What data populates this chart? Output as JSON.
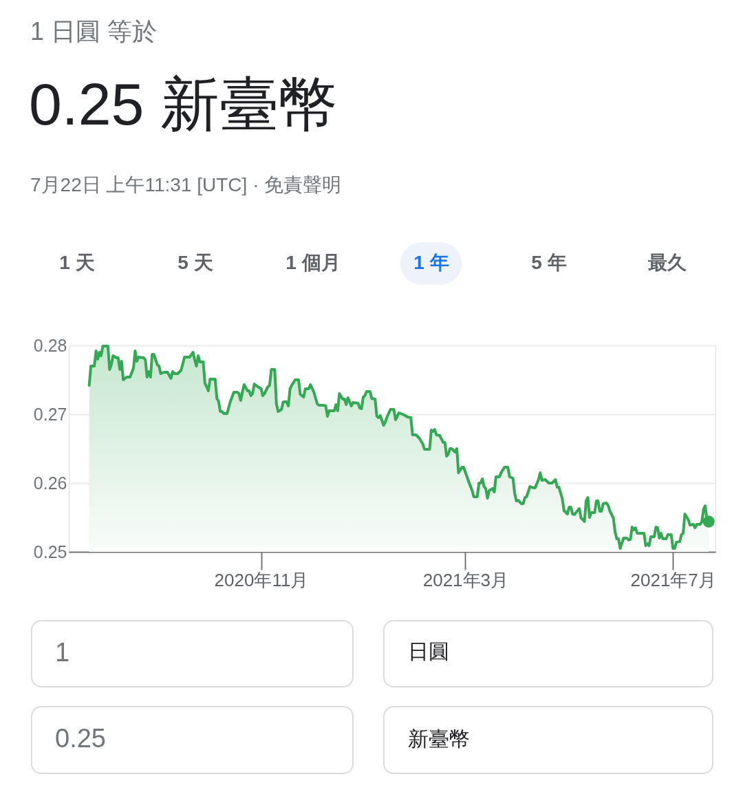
{
  "chart_data": {
    "type": "area",
    "title": "1 日圓 等於",
    "subtitle": "0.25 新臺幣",
    "annotations": [
      "7月22日 上午11:31 [UTC] · 免責聲明",
      "1 天",
      "5 天",
      "1 個月",
      "1 年",
      "5 年",
      "最久",
      "1",
      "日圓",
      "0.25",
      "新臺幣"
    ],
    "x": [
      "2020-07-23",
      "2020-07-24",
      "2020-07-26",
      "2020-07-27",
      "2020-07-28",
      "2020-07-29",
      "2020-07-30",
      "2020-07-31",
      "2020-08-03",
      "2020-08-04",
      "2020-08-05",
      "2020-08-06",
      "2020-08-08",
      "2020-08-09",
      "2020-08-10",
      "2020-08-11",
      "2020-08-12",
      "2020-08-14",
      "2020-08-16",
      "2020-08-18",
      "2020-08-19",
      "2020-08-20",
      "2020-08-21",
      "2020-08-24",
      "2020-08-25",
      "2020-08-26",
      "2020-08-27",
      "2020-08-28",
      "2020-08-29",
      "2020-08-30",
      "2020-09-01",
      "2020-09-02",
      "2020-09-03",
      "2020-09-05",
      "2020-09-07",
      "2020-09-09",
      "2020-09-10",
      "2020-09-11",
      "2020-09-13",
      "2020-09-15",
      "2020-09-17",
      "2020-09-20",
      "2020-09-22",
      "2020-09-23",
      "2020-09-24",
      "2020-09-25",
      "2020-09-26",
      "2020-09-28",
      "2020-09-29",
      "2020-09-30",
      "2020-10-01",
      "2020-10-02",
      "2020-10-05",
      "2020-10-06",
      "2020-10-07",
      "2020-10-08",
      "2020-10-09",
      "2020-10-10",
      "2020-10-12",
      "2020-10-14",
      "2020-10-16",
      "2020-10-18",
      "2020-10-19",
      "2020-10-20",
      "2020-10-21",
      "2020-10-22",
      "2020-10-24",
      "2020-10-25",
      "2020-10-26",
      "2020-10-27",
      "2020-10-28",
      "2020-10-30",
      "2020-11-01",
      "2020-11-02",
      "2020-11-03",
      "2020-11-05",
      "2020-11-06",
      "2020-11-07",
      "2020-11-09",
      "2020-11-10",
      "2020-11-11",
      "2020-11-13",
      "2020-11-14",
      "2020-11-16",
      "2020-11-17",
      "2020-11-18",
      "2020-11-19",
      "2020-11-21",
      "2020-11-23",
      "2020-11-24",
      "2020-11-26",
      "2020-11-27",
      "2020-11-29",
      "2020-11-30",
      "2020-12-02",
      "2020-12-04",
      "2020-12-05",
      "2020-12-08",
      "2020-12-09",
      "2020-12-10",
      "2020-12-11",
      "2020-12-14",
      "2020-12-15",
      "2020-12-16",
      "2020-12-17",
      "2020-12-19",
      "2020-12-20",
      "2020-12-21",
      "2020-12-22",
      "2020-12-24",
      "2020-12-25",
      "2020-12-28",
      "2020-12-29",
      "2020-12-30",
      "2020-12-31",
      "2021-01-01",
      "2021-01-02",
      "2021-01-04",
      "2021-01-05",
      "2021-01-07",
      "2021-01-08",
      "2021-01-09",
      "2021-01-10",
      "2021-01-12",
      "2021-01-13",
      "2021-01-14",
      "2021-01-16",
      "2021-01-18",
      "2021-01-19",
      "2021-01-21",
      "2021-01-23",
      "2021-01-24",
      "2021-01-26",
      "2021-01-28",
      "2021-01-29",
      "2021-01-31",
      "2021-02-02",
      "2021-02-04",
      "2021-02-05",
      "2021-02-08",
      "2021-02-09",
      "2021-02-10",
      "2021-02-11",
      "2021-02-12",
      "2021-02-14",
      "2021-02-16",
      "2021-02-17",
      "2021-02-18",
      "2021-02-19",
      "2021-02-20",
      "2021-02-21",
      "2021-02-23",
      "2021-02-24",
      "2021-02-25",
      "2021-02-27",
      "2021-02-28",
      "2021-03-03",
      "2021-03-05",
      "2021-03-06",
      "2021-03-08",
      "2021-03-09",
      "2021-03-10",
      "2021-03-11",
      "2021-03-12",
      "2021-03-13",
      "2021-03-14",
      "2021-03-15",
      "2021-03-17",
      "2021-03-18",
      "2021-03-19",
      "2021-03-21",
      "2021-03-22",
      "2021-03-24",
      "2021-03-26",
      "2021-03-27",
      "2021-03-29",
      "2021-03-30",
      "2021-03-31",
      "2021-04-01",
      "2021-04-03",
      "2021-04-04",
      "2021-04-05",
      "2021-04-06",
      "2021-04-08",
      "2021-04-10",
      "2021-04-11",
      "2021-04-13",
      "2021-04-14",
      "2021-04-15",
      "2021-04-17",
      "2021-04-19",
      "2021-04-21",
      "2021-04-23",
      "2021-04-24",
      "2021-04-25",
      "2021-04-27",
      "2021-04-28",
      "2021-04-30",
      "2021-05-01",
      "2021-05-02",
      "2021-05-03",
      "2021-05-04",
      "2021-05-06",
      "2021-05-07",
      "2021-05-08",
      "2021-05-09",
      "2021-05-10",
      "2021-05-11",
      "2021-05-12",
      "2021-05-13",
      "2021-05-14",
      "2021-05-16",
      "2021-05-17",
      "2021-05-18",
      "2021-05-19",
      "2021-05-20",
      "2021-05-21",
      "2021-05-23",
      "2021-05-24",
      "2021-05-25",
      "2021-05-27",
      "2021-05-28",
      "2021-05-29",
      "2021-05-30",
      "2021-05-31",
      "2021-06-02",
      "2021-06-04",
      "2021-06-05",
      "2021-06-06",
      "2021-06-07",
      "2021-06-08",
      "2021-06-09",
      "2021-06-10",
      "2021-06-12",
      "2021-06-14",
      "2021-06-15",
      "2021-06-16",
      "2021-06-17",
      "2021-06-18",
      "2021-06-20",
      "2021-06-21",
      "2021-06-22",
      "2021-06-23",
      "2021-06-24",
      "2021-06-25",
      "2021-06-27",
      "2021-06-28",
      "2021-06-30",
      "2021-07-01",
      "2021-07-02",
      "2021-07-03",
      "2021-07-05",
      "2021-07-06",
      "2021-07-07",
      "2021-07-08",
      "2021-07-10",
      "2021-07-11",
      "2021-07-13",
      "2021-07-14",
      "2021-07-15",
      "2021-07-17",
      "2021-07-18",
      "2021-07-19",
      "2021-07-20",
      "2021-07-21",
      "2021-07-22"
    ],
    "series": [
      {
        "color": "#34a853",
        "values": [
          0.2742,
          0.277,
          0.277,
          0.2792,
          0.278,
          0.279,
          0.2785,
          0.2799,
          0.2799,
          0.2765,
          0.2772,
          0.2785,
          0.2782,
          0.2782,
          0.2765,
          0.2777,
          0.275,
          0.2754,
          0.2754,
          0.2767,
          0.2792,
          0.2777,
          0.2783,
          0.2782,
          0.2779,
          0.2754,
          0.2762,
          0.2754,
          0.2787,
          0.2787,
          0.2772,
          0.277,
          0.2759,
          0.2761,
          0.2761,
          0.2752,
          0.2762,
          0.2759,
          0.2759,
          0.2764,
          0.2783,
          0.2783,
          0.279,
          0.2779,
          0.277,
          0.2785,
          0.2776,
          0.2776,
          0.2745,
          0.274,
          0.2734,
          0.2751,
          0.2751,
          0.2723,
          0.2719,
          0.2704,
          0.2704,
          0.2701,
          0.2701,
          0.2719,
          0.2732,
          0.2732,
          0.273,
          0.272,
          0.2732,
          0.2743,
          0.2734,
          0.2734,
          0.2727,
          0.273,
          0.2744,
          0.274,
          0.2737,
          0.2727,
          0.273,
          0.274,
          0.2742,
          0.2765,
          0.2765,
          0.2715,
          0.2704,
          0.2707,
          0.2718,
          0.2718,
          0.2712,
          0.2737,
          0.2742,
          0.275,
          0.275,
          0.2729,
          0.2725,
          0.2737,
          0.2737,
          0.2743,
          0.2732,
          0.2715,
          0.2713,
          0.2713,
          0.2712,
          0.2697,
          0.2705,
          0.2705,
          0.2714,
          0.2705,
          0.273,
          0.2722,
          0.2722,
          0.2714,
          0.2724,
          0.2712,
          0.2717,
          0.2716,
          0.2709,
          0.2708,
          0.2725,
          0.2727,
          0.2733,
          0.2733,
          0.2723,
          0.2722,
          0.2697,
          0.2695,
          0.2698,
          0.2684,
          0.2689,
          0.2696,
          0.2707,
          0.2707,
          0.2692,
          0.2702,
          0.27,
          0.2699,
          0.2696,
          0.2695,
          0.267,
          0.267,
          0.2665,
          0.2657,
          0.2649,
          0.2649,
          0.2677,
          0.2675,
          0.2678,
          0.267,
          0.2669,
          0.2659,
          0.2659,
          0.2639,
          0.2642,
          0.265,
          0.265,
          0.2645,
          0.265,
          0.2615,
          0.2623,
          0.2623,
          0.2602,
          0.2589,
          0.258,
          0.258,
          0.26,
          0.26,
          0.2606,
          0.2595,
          0.2592,
          0.2578,
          0.2589,
          0.2592,
          0.2587,
          0.2609,
          0.2609,
          0.2615,
          0.2623,
          0.2623,
          0.2609,
          0.2607,
          0.2585,
          0.2574,
          0.2575,
          0.257,
          0.257,
          0.2579,
          0.258,
          0.2595,
          0.2593,
          0.2593,
          0.2605,
          0.2615,
          0.2604,
          0.2605,
          0.26,
          0.26,
          0.2605,
          0.2594,
          0.2594,
          0.2577,
          0.256,
          0.2555,
          0.2565,
          0.2565,
          0.2555,
          0.2554,
          0.256,
          0.2563,
          0.2549,
          0.2547,
          0.2544,
          0.2574,
          0.2579,
          0.255,
          0.2557,
          0.2557,
          0.2574,
          0.2574,
          0.2559,
          0.2559,
          0.257,
          0.2571,
          0.2567,
          0.2559,
          0.2549,
          0.2529,
          0.2519,
          0.2519,
          0.2505,
          0.252,
          0.252,
          0.2517,
          0.2518,
          0.2536,
          0.2532,
          0.2535,
          0.2527,
          0.2527,
          0.2527,
          0.2509,
          0.2512,
          0.2509,
          0.2522,
          0.2522,
          0.2536,
          0.2535,
          0.252,
          0.2527,
          0.2519,
          0.2519,
          0.2525,
          0.2525,
          0.2505,
          0.2505,
          0.2514,
          0.2515,
          0.2525,
          0.2527,
          0.2555,
          0.2547,
          0.2539,
          0.254,
          0.2535,
          0.254,
          0.254,
          0.2544,
          0.2562,
          0.2567,
          0.2545,
          0.2544
        ]
      },
      {
        "type": "scatter",
        "x": [
          "2021-07-22"
        ],
        "color": "#34a853",
        "values": [
          0.2544
        ]
      }
    ],
    "xlim": [
      "2020-07-11",
      "2021-07-26"
    ],
    "xticks": [
      {
        "value": "2020-11-01",
        "label": "2020年11月"
      },
      {
        "value": "2021-03-01",
        "label": "2021年3月"
      },
      {
        "value": "2021-07-01",
        "label": "2021年7月"
      }
    ],
    "ylim": [
      0.25,
      0.28
    ],
    "yticks": [
      0.25,
      0.26,
      0.27,
      0.28
    ],
    "grid": "y"
  }
}
